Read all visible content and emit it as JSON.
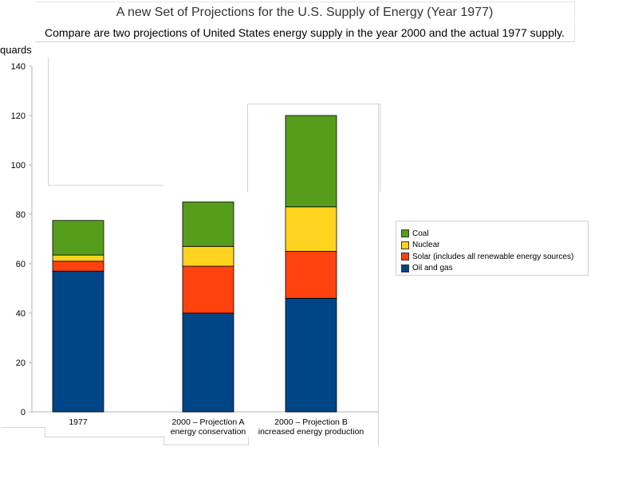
{
  "header": {
    "title": "A new Set of Projections for the U.S. Supply of Energy (Year 1977)",
    "subtitle": "Compare are two projections of United States energy supply in the year 2000 and the actual 1977 supply."
  },
  "chart_data": {
    "type": "bar",
    "stacked": true,
    "ylabel": "quards",
    "ylim": [
      0,
      140
    ],
    "yticks": [
      0,
      20,
      40,
      60,
      80,
      100,
      120,
      140
    ],
    "categories": [
      [
        "1977"
      ],
      [
        "2000 – Projection A",
        "energy conservation"
      ],
      [
        "2000 – Projection B",
        "increased energy production"
      ]
    ],
    "series": [
      {
        "name": "Oil and gas",
        "color": "#004586",
        "values": [
          57,
          40,
          46
        ]
      },
      {
        "name": "Solar (includes all renewable energy sources)",
        "color": "#ff420e",
        "values": [
          4,
          19,
          19
        ]
      },
      {
        "name": "Nuclear",
        "color": "#ffd320",
        "values": [
          2.5,
          8,
          18
        ]
      },
      {
        "name": "Coal",
        "color": "#579d1c",
        "values": [
          14,
          18,
          37
        ]
      }
    ],
    "legend_position": "right",
    "grid": false
  }
}
